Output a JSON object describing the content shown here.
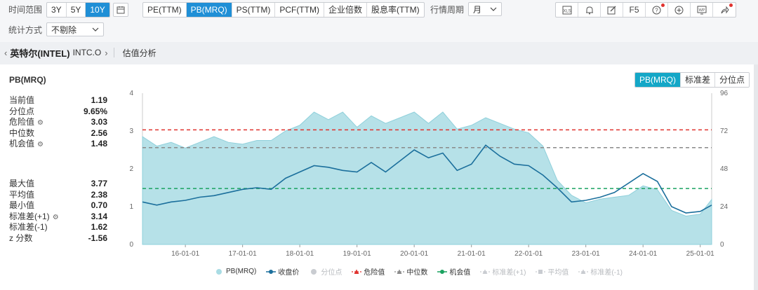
{
  "toolbar": {
    "time_range_label": "时间范围",
    "time_ranges": [
      "3Y",
      "5Y",
      "10Y"
    ],
    "time_range_active": "10Y",
    "metrics": [
      "PE(TTM)",
      "PB(MRQ)",
      "PS(TTM)",
      "PCF(TTM)",
      "企业倍数",
      "股息率(TTM)"
    ],
    "metric_active": "PB(MRQ)",
    "period_label": "行情周期",
    "period_value": "月",
    "method_label": "统计方式",
    "method_value": "不剔除",
    "tools": [
      "xls-icon",
      "bell-icon",
      "edit-icon",
      "F5",
      "help-icon",
      "plus-circle-icon",
      "wp-icon",
      "share-icon"
    ]
  },
  "breadcrumb": {
    "name": "英特尔(INTEL)",
    "code": "INTC.O",
    "section": "估值分析"
  },
  "panel": {
    "title": "PB(MRQ)",
    "view_tabs": [
      "PB(MRQ)",
      "标准差",
      "分位点"
    ],
    "view_active": "PB(MRQ)",
    "stats_top": [
      {
        "label": "当前值",
        "value": "1.19",
        "gear": false
      },
      {
        "label": "分位点",
        "value": "9.65%",
        "gear": false
      },
      {
        "label": "危险值",
        "value": "3.03",
        "gear": true
      },
      {
        "label": "中位数",
        "value": "2.56",
        "gear": false
      },
      {
        "label": "机会值",
        "value": "1.48",
        "gear": true
      }
    ],
    "stats_bottom": [
      {
        "label": "最大值",
        "value": "3.77",
        "gear": false
      },
      {
        "label": "平均值",
        "value": "2.38",
        "gear": false
      },
      {
        "label": "最小值",
        "value": "0.70",
        "gear": false
      },
      {
        "label": "标准差(+1)",
        "value": "3.14",
        "gear": true
      },
      {
        "label": "标准差(-1)",
        "value": "1.62",
        "gear": false
      },
      {
        "label": "z 分数",
        "value": "-1.56",
        "gear": false
      }
    ]
  },
  "colors": {
    "accent": "#1f8fd6",
    "area": "#a9dce4",
    "price_line": "#1b6f9c",
    "danger": "#e0322e",
    "median": "#8a8a8a",
    "opportunity": "#1aa260"
  },
  "chart_data": {
    "type": "area",
    "title": "PB(MRQ)",
    "x_ticks": [
      "16-01-01",
      "17-01-01",
      "18-01-01",
      "19-01-01",
      "20-01-01",
      "21-01-01",
      "22-01-01",
      "23-01-01",
      "24-01-01",
      "25-01-01"
    ],
    "y_left_ticks": [
      "0",
      "1",
      "2",
      "3",
      "4"
    ],
    "y_left_range": [
      0,
      4
    ],
    "y_right_ticks": [
      "0",
      "24",
      "48",
      "72",
      "96"
    ],
    "y_right_range": [
      0,
      96
    ],
    "x_range": [
      2015.25,
      2025.2
    ],
    "reference_lines": [
      {
        "name": "危险值",
        "value": 3.03,
        "style": "dashed"
      },
      {
        "name": "中位数",
        "value": 2.56,
        "style": "dashed"
      },
      {
        "name": "机会值",
        "value": 1.48,
        "style": "dashed"
      }
    ],
    "series": [
      {
        "name": "PB(MRQ)",
        "axis": "left",
        "x": [
          2015.25,
          2015.5,
          2015.75,
          2016.0,
          2016.25,
          2016.5,
          2016.75,
          2017.0,
          2017.25,
          2017.5,
          2017.75,
          2018.0,
          2018.25,
          2018.5,
          2018.75,
          2019.0,
          2019.25,
          2019.5,
          2019.75,
          2020.0,
          2020.25,
          2020.5,
          2020.75,
          2021.0,
          2021.25,
          2021.5,
          2021.75,
          2022.0,
          2022.25,
          2022.5,
          2022.75,
          2023.0,
          2023.25,
          2023.5,
          2023.75,
          2024.0,
          2024.25,
          2024.5,
          2024.75,
          2025.0,
          2025.2
        ],
        "values": [
          2.85,
          2.6,
          2.7,
          2.55,
          2.7,
          2.85,
          2.7,
          2.65,
          2.75,
          2.75,
          3.0,
          3.15,
          3.5,
          3.3,
          3.5,
          3.1,
          3.4,
          3.2,
          3.35,
          3.5,
          3.2,
          3.5,
          3.05,
          3.15,
          3.35,
          3.2,
          3.05,
          2.95,
          2.6,
          1.7,
          1.3,
          1.1,
          1.2,
          1.25,
          1.3,
          1.55,
          1.45,
          0.9,
          0.75,
          0.8,
          1.19
        ]
      },
      {
        "name": "收盘价",
        "axis": "right",
        "x": [
          2015.25,
          2015.5,
          2015.75,
          2016.0,
          2016.25,
          2016.5,
          2016.75,
          2017.0,
          2017.25,
          2017.5,
          2017.75,
          2018.0,
          2018.25,
          2018.5,
          2018.75,
          2019.0,
          2019.25,
          2019.5,
          2019.75,
          2020.0,
          2020.25,
          2020.5,
          2020.75,
          2021.0,
          2021.25,
          2021.5,
          2021.75,
          2022.0,
          2022.25,
          2022.5,
          2022.75,
          2023.0,
          2023.25,
          2023.5,
          2023.75,
          2024.0,
          2024.25,
          2024.5,
          2024.75,
          2025.0,
          2025.2
        ],
        "values": [
          27,
          25,
          27,
          28,
          30,
          31,
          33,
          35,
          36,
          35,
          42,
          46,
          50,
          49,
          47,
          46,
          52,
          46,
          53,
          60,
          55,
          58,
          47,
          51,
          63,
          56,
          51,
          50,
          44,
          36,
          27,
          28,
          30,
          33,
          39,
          45,
          40,
          24,
          20,
          21,
          25
        ]
      }
    ],
    "legend": [
      "PB(MRQ)",
      "收盘价",
      "分位点",
      "危险值",
      "中位数",
      "机会值",
      "标准差(+1)",
      "平均值",
      "标准差(-1)"
    ]
  }
}
